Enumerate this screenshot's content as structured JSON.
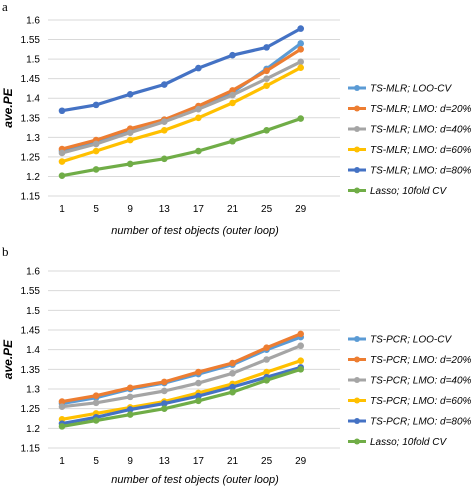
{
  "chart_data": [
    {
      "type": "line",
      "panel_label": "a",
      "ylabel": "ave.PE",
      "xlabel": "number of test objects (outer loop)",
      "categories": [
        "1",
        "5",
        "9",
        "13",
        "17",
        "21",
        "25",
        "29"
      ],
      "ylim": [
        1.15,
        1.6
      ],
      "yticks": [
        "1.15",
        "1.2",
        "1.25",
        "1.3",
        "1.35",
        "1.4",
        "1.45",
        "1.5",
        "1.55",
        "1.6"
      ],
      "grid": true,
      "legend_position": "right",
      "series": [
        {
          "name": "TS-MLR; LOO-CV",
          "color": "#5b9bd5",
          "values": [
            1.265,
            1.29,
            1.318,
            1.345,
            1.375,
            1.415,
            1.475,
            1.54
          ]
        },
        {
          "name": "TS-MLR; LMO: d=20%",
          "color": "#ed7d31",
          "values": [
            1.27,
            1.293,
            1.322,
            1.345,
            1.38,
            1.42,
            1.47,
            1.525
          ]
        },
        {
          "name": "TS-MLR; LMO: d=40%",
          "color": "#a5a5a5",
          "values": [
            1.26,
            1.283,
            1.312,
            1.34,
            1.372,
            1.408,
            1.45,
            1.493
          ]
        },
        {
          "name": "TS-MLR; LMO: d=60%",
          "color": "#ffc000",
          "values": [
            1.238,
            1.265,
            1.293,
            1.318,
            1.35,
            1.388,
            1.432,
            1.478
          ]
        },
        {
          "name": "TS-MLR; LMO: d=80%",
          "color": "#4472c4",
          "values": [
            1.368,
            1.383,
            1.41,
            1.435,
            1.477,
            1.51,
            1.53,
            1.578
          ]
        },
        {
          "name": "Lasso; 10fold CV",
          "color": "#70ad47",
          "values": [
            1.202,
            1.218,
            1.232,
            1.245,
            1.265,
            1.29,
            1.318,
            1.348
          ]
        }
      ]
    },
    {
      "type": "line",
      "panel_label": "b",
      "ylabel": "ave.PE",
      "xlabel": "number of test objects (outer loop)",
      "categories": [
        "1",
        "5",
        "9",
        "13",
        "17",
        "21",
        "25",
        "29"
      ],
      "ylim": [
        1.15,
        1.6
      ],
      "yticks": [
        "1.15",
        "1.2",
        "1.25",
        "1.3",
        "1.35",
        "1.4",
        "1.45",
        "1.5",
        "1.55",
        "1.6"
      ],
      "grid": true,
      "legend_position": "right",
      "series": [
        {
          "name": "TS-PCR; LOO-CV",
          "color": "#5b9bd5",
          "values": [
            1.263,
            1.278,
            1.3,
            1.315,
            1.338,
            1.362,
            1.4,
            1.432
          ]
        },
        {
          "name": "TS-PCR; LMO: d=20%",
          "color": "#ed7d31",
          "values": [
            1.268,
            1.283,
            1.303,
            1.318,
            1.343,
            1.366,
            1.405,
            1.44
          ]
        },
        {
          "name": "TS-PCR; LMO: d=40%",
          "color": "#a5a5a5",
          "values": [
            1.255,
            1.265,
            1.28,
            1.295,
            1.315,
            1.34,
            1.375,
            1.41
          ]
        },
        {
          "name": "TS-PCR; LMO: d=60%",
          "color": "#ffc000",
          "values": [
            1.223,
            1.238,
            1.253,
            1.268,
            1.29,
            1.313,
            1.343,
            1.372
          ]
        },
        {
          "name": "TS-PCR; LMO: d=80%",
          "color": "#4472c4",
          "values": [
            1.212,
            1.228,
            1.248,
            1.263,
            1.282,
            1.305,
            1.33,
            1.355
          ]
        },
        {
          "name": "Lasso; 10fold CV",
          "color": "#70ad47",
          "values": [
            1.205,
            1.22,
            1.235,
            1.25,
            1.27,
            1.292,
            1.322,
            1.35
          ]
        }
      ]
    }
  ]
}
